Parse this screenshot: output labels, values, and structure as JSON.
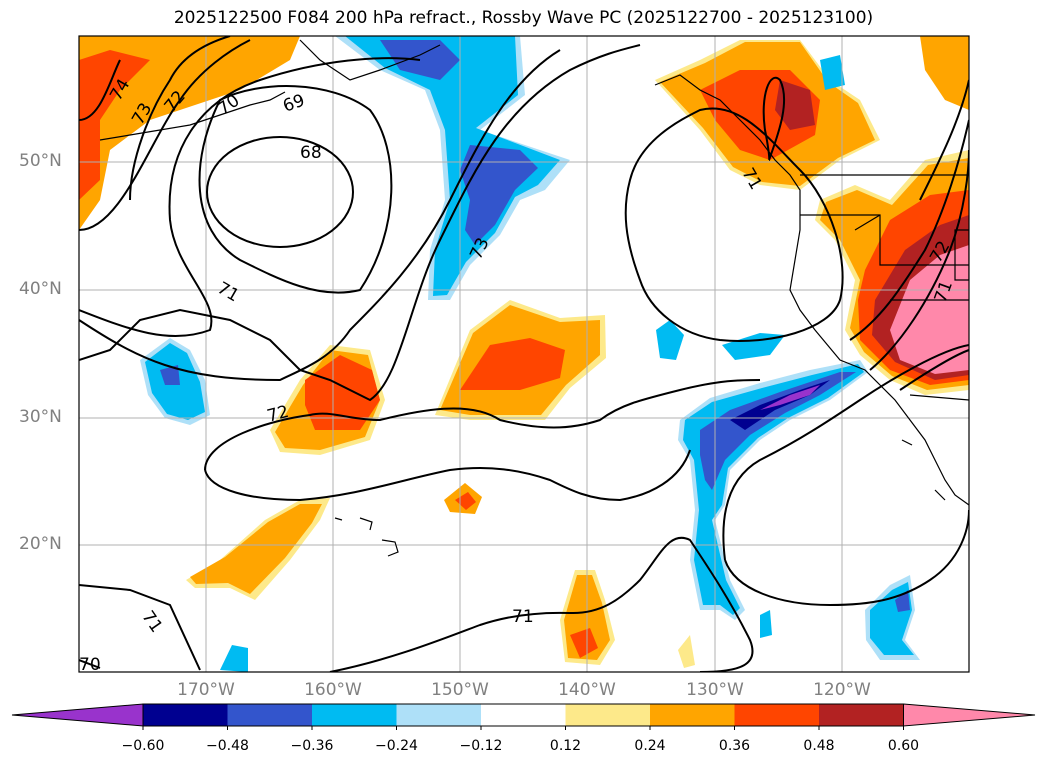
{
  "title": "2025122500 F084 200 hPa refract., Rossby Wave PC (2025122700 - 2025123100)",
  "lat_labels": [
    "50°N",
    "40°N",
    "30°N",
    "20°N"
  ],
  "lon_labels": [
    "170°W",
    "160°W",
    "150°W",
    "140°W",
    "130°W",
    "120°W"
  ],
  "contour_labels": [
    "74",
    "73",
    "72",
    "70",
    "69",
    "68",
    "73",
    "71",
    "72",
    "71",
    "71",
    "70",
    "71",
    "72",
    "71"
  ],
  "colorbar": {
    "ticks": [
      "−0.60",
      "−0.48",
      "−0.36",
      "−0.24",
      "−0.12",
      "0.12",
      "0.24",
      "0.36",
      "0.48",
      "0.60"
    ],
    "colors": [
      "#9933cc",
      "#000090",
      "#3355cc",
      "#00bbf2",
      "#aee0f8",
      "#ffffff",
      "#fde98a",
      "#ffa500",
      "#ff4500",
      "#b22222",
      "#ff88aa"
    ]
  }
}
